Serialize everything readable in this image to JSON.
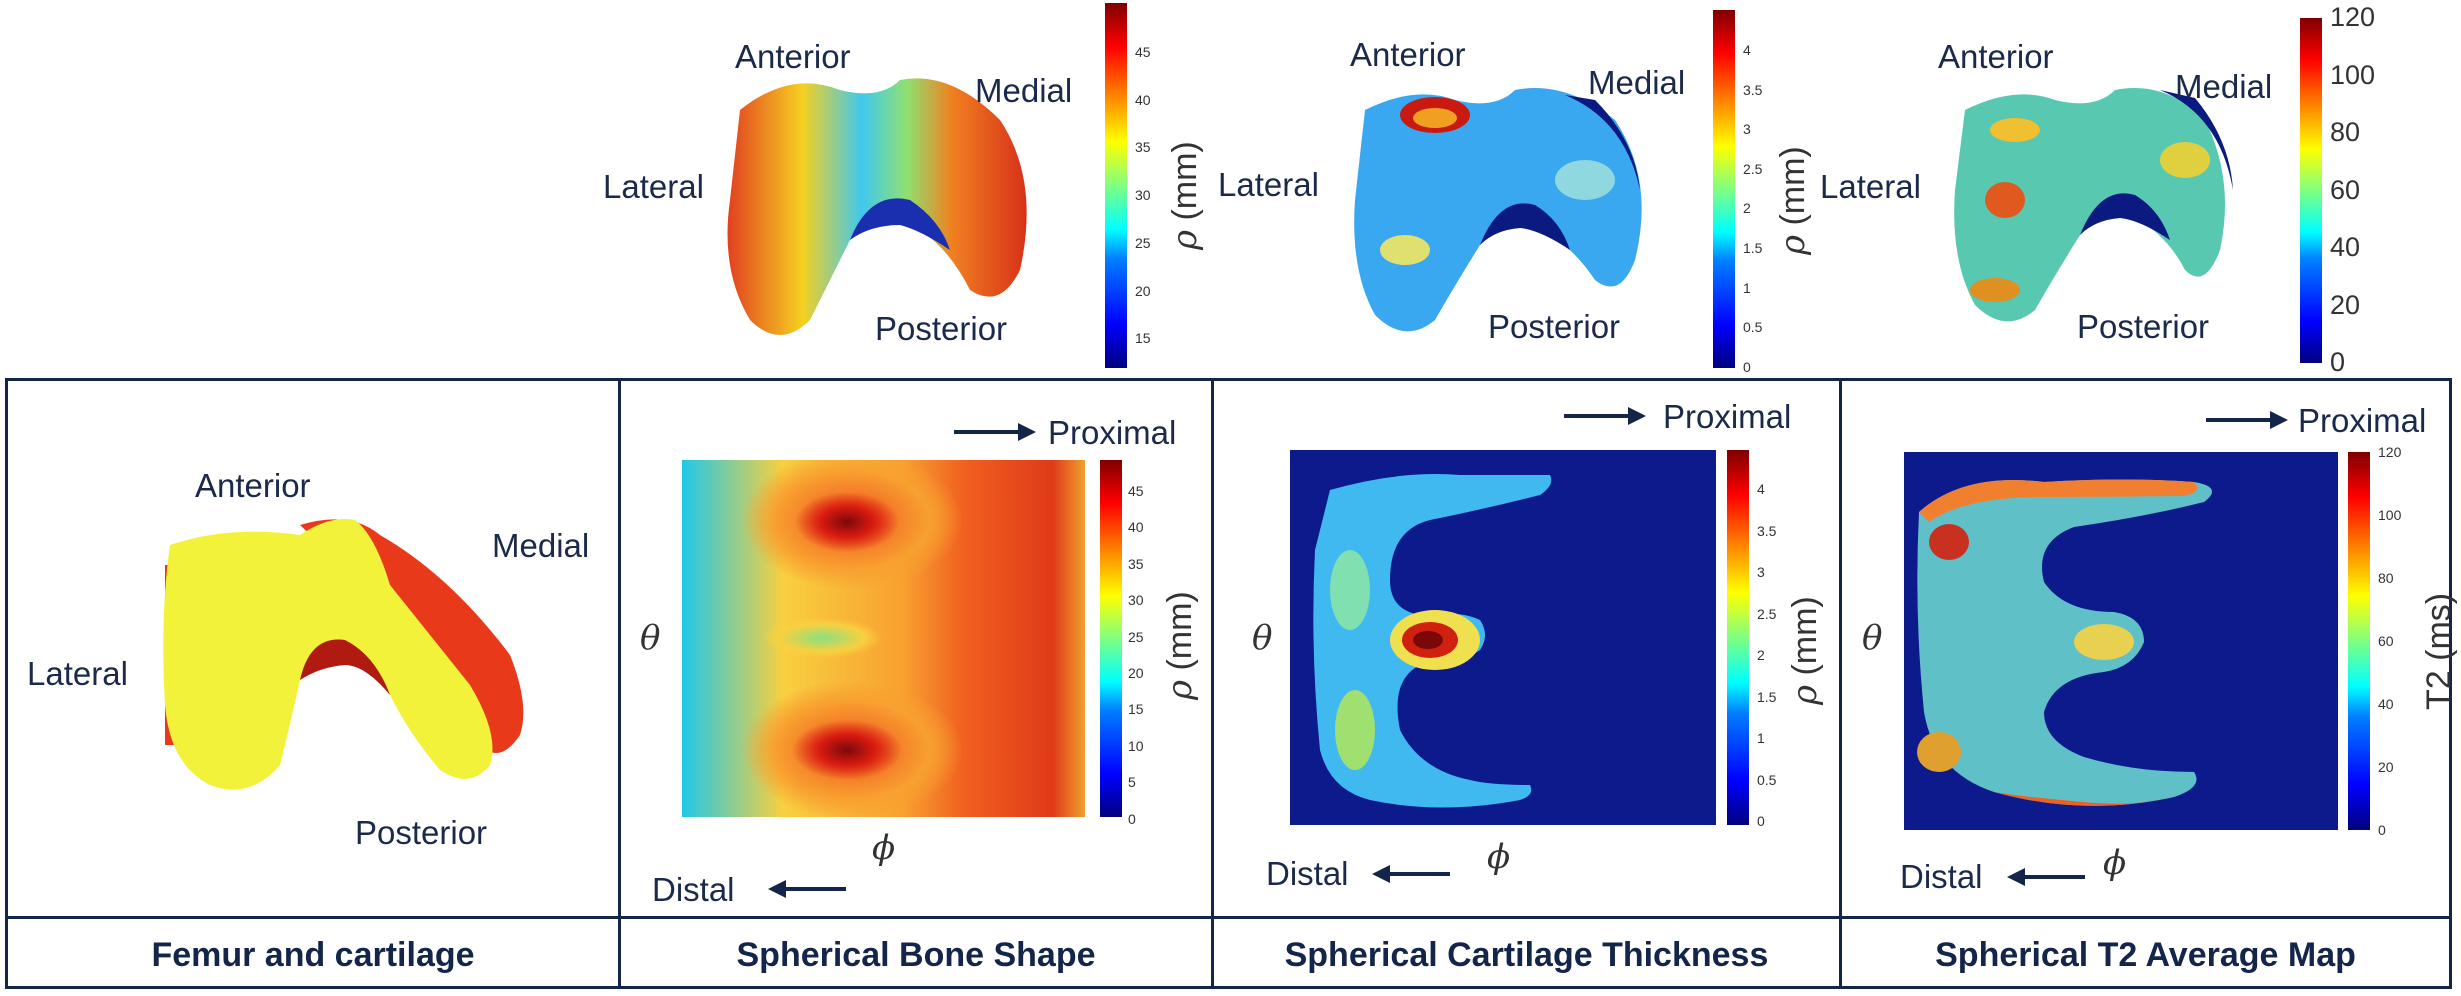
{
  "top_row": {
    "bone": {
      "labels": {
        "anterior": "Anterior",
        "medial": "Medial",
        "lateral": "Lateral",
        "posterior": "Posterior"
      },
      "colorbar": {
        "ticks": [
          "45",
          "40",
          "35",
          "30",
          "25",
          "20",
          "15"
        ],
        "title_sym": "ρ",
        "title_unit": " (mm)"
      }
    },
    "thickness": {
      "labels": {
        "anterior": "Anterior",
        "medial": "Medial",
        "lateral": "Lateral",
        "posterior": "Posterior"
      },
      "colorbar": {
        "ticks": [
          "4",
          "3.5",
          "3",
          "2.5",
          "2",
          "1.5",
          "1",
          "0.5",
          "0"
        ],
        "title_sym": "ρ",
        "title_unit": " (mm)"
      }
    },
    "t2": {
      "labels": {
        "anterior": "Anterior",
        "medial": "Medial",
        "lateral": "Lateral",
        "posterior": "Posterior"
      },
      "colorbar": {
        "ticks": [
          "120",
          "100",
          "80",
          "60",
          "40",
          "20",
          "0"
        ]
      }
    }
  },
  "panels": {
    "femur": {
      "labels": {
        "anterior": "Anterior",
        "medial": "Medial",
        "lateral": "Lateral",
        "posterior": "Posterior"
      },
      "caption": "Femur and cartilage"
    },
    "bone_shape": {
      "proximal": "Proximal",
      "distal": "Distal",
      "x_sym": "ϕ",
      "y_sym": "θ",
      "colorbar": {
        "ticks": [
          "45",
          "40",
          "35",
          "30",
          "25",
          "20",
          "15",
          "10",
          "5",
          "0"
        ],
        "title_sym": "ρ",
        "title_unit": " (mm)"
      },
      "caption": "Spherical Bone Shape"
    },
    "cart_thickness": {
      "proximal": "Proximal",
      "distal": "Distal",
      "x_sym": "ϕ",
      "y_sym": "θ",
      "colorbar": {
        "ticks": [
          "4",
          "3.5",
          "3",
          "2.5",
          "2",
          "1.5",
          "1",
          "0.5",
          "0"
        ],
        "title_sym": "ρ",
        "title_unit": " (mm)"
      },
      "caption": "Spherical Cartilage Thickness"
    },
    "t2_map": {
      "proximal": "Proximal",
      "distal": "Distal",
      "x_sym": "ϕ",
      "y_sym": "θ",
      "colorbar": {
        "ticks": [
          "120",
          "100",
          "80",
          "60",
          "40",
          "20",
          "0"
        ],
        "title": "T2 (ms)"
      },
      "caption": "Spherical T2 Average Map"
    }
  },
  "colors": {
    "frame": "#14254a",
    "femur_yellow": "#f2f23a",
    "cartilage_red": "#e83a1a",
    "map_bg": "#0d1a8c"
  }
}
